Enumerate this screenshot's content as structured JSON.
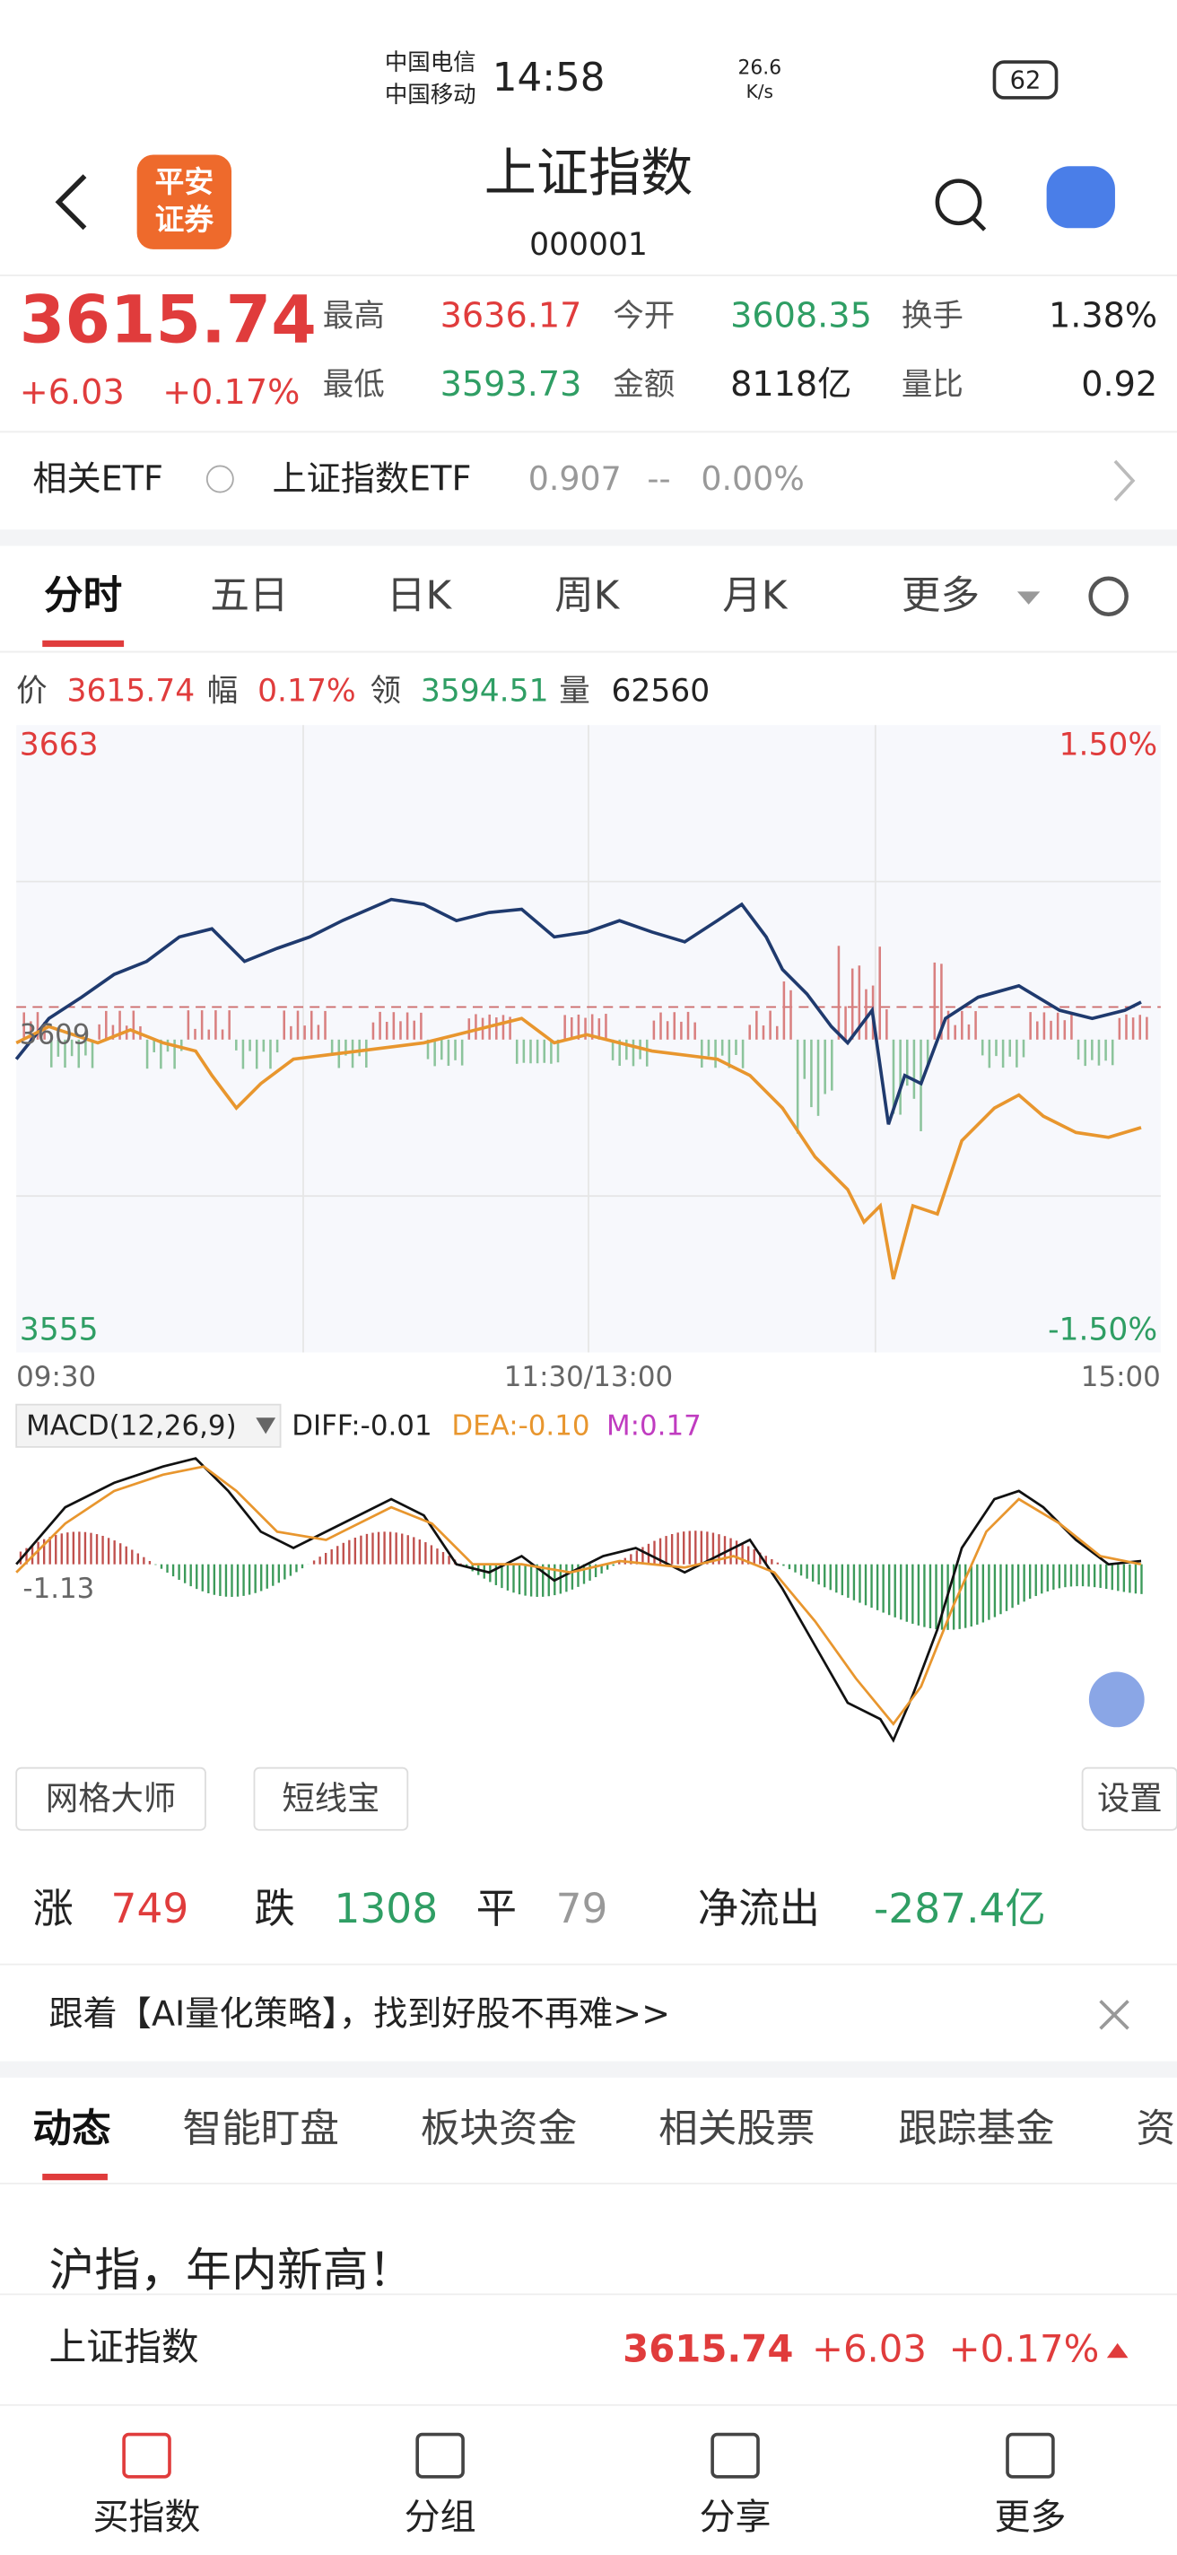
{
  "status": {
    "carrier_1": "中国电信",
    "carrier_2": "中国移动",
    "time": "14:58",
    "speed": "26.6",
    "speed_unit": "K/s",
    "battery": "62"
  },
  "header": {
    "logo_1": "平安",
    "logo_2": "证券",
    "title": "上证指数",
    "code": "000001"
  },
  "quote": {
    "price": "3615.74",
    "change": "+6.03",
    "pct": "+0.17%",
    "fields": [
      {
        "label": "最高",
        "value": "3636.17"
      },
      {
        "label": "今开",
        "value": "3608.35"
      },
      {
        "label": "换手",
        "value": "1.38%"
      },
      {
        "label": "最低",
        "value": "3593.73"
      },
      {
        "label": "金额",
        "value": "8118亿"
      },
      {
        "label": "量比",
        "value": "0.92"
      }
    ]
  },
  "etf": {
    "label": "相关ETF",
    "name": "上证指数ETF",
    "price": "0.907",
    "change": "--",
    "pct": "0.00%"
  },
  "tabs": [
    "分时",
    "五日",
    "日K",
    "周K",
    "月K",
    "更多"
  ],
  "info": [
    {
      "label": "价",
      "value": "3615.74"
    },
    {
      "label": "幅",
      "value": "0.17%"
    },
    {
      "label": "领",
      "value": "3594.51"
    },
    {
      "label": "量",
      "value": "62560"
    }
  ],
  "chart": {
    "ymax": "3663",
    "ymid": "3609",
    "ymin": "3555",
    "pmax": "1.50%",
    "pmin": "-1.50%",
    "times": [
      "09:30",
      "11:30/13:00",
      "15:00"
    ]
  },
  "macd": {
    "label": "MACD(12,26,9)",
    "diff": "DIFF:-0.01",
    "dea": "DEA:-0.10",
    "m": "M:0.17",
    "axis": "-1.13"
  },
  "buttons": [
    "网格大师",
    "短线宝",
    "设置"
  ],
  "breadth": [
    {
      "label": "涨",
      "value": "749"
    },
    {
      "label": "跌",
      "value": "1308"
    },
    {
      "label": "平",
      "value": "79"
    },
    {
      "label": "净流出",
      "value": "-287.4亿"
    }
  ],
  "banner": "跟着【AI量化策略】，找到好股不再难>>",
  "news_tabs": [
    "动态",
    "智能盯盘",
    "板块资金",
    "相关股票",
    "跟踪基金",
    "资"
  ],
  "news_title": "沪指，年内新高！",
  "bottom_quote": {
    "name": "上证指数",
    "price": "3615.74",
    "change": "+6.03",
    "pct": "+0.17%"
  },
  "nav": [
    "买指数",
    "分组",
    "分享",
    "更多"
  ]
}
